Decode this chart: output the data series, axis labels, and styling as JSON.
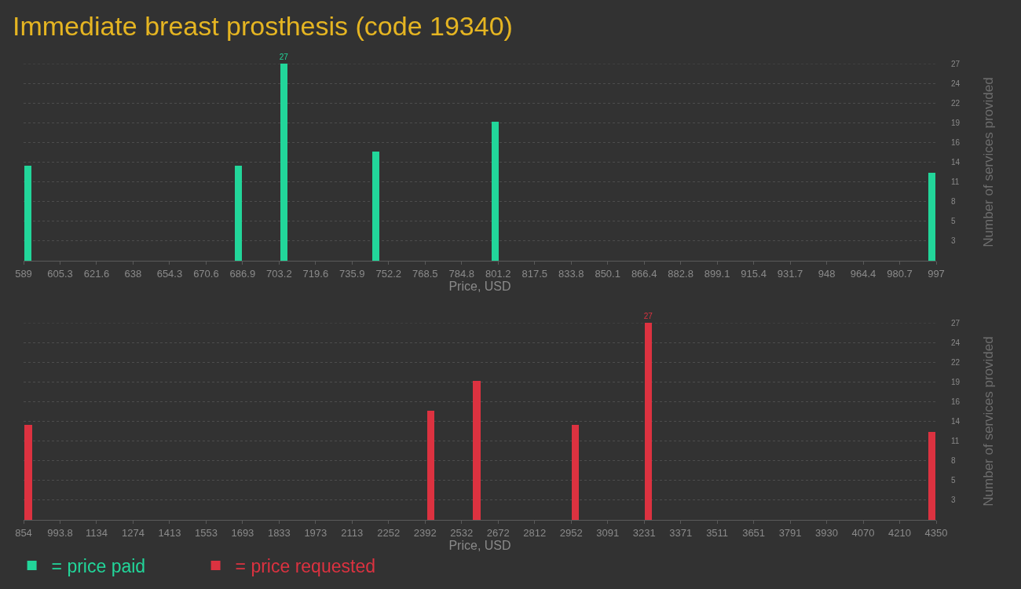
{
  "chart_data": [
    {
      "type": "bar",
      "title": "Immediate breast prosthesis (code 19340)",
      "xlabel": "Price, USD",
      "ylabel": "Number of services provided",
      "series": [
        {
          "name": "= price paid",
          "color": "#22d69a",
          "x": [
            591,
            685,
            705.5,
            746.5,
            800,
            995
          ],
          "values": [
            13,
            13,
            27,
            15,
            19,
            12
          ],
          "value_labels": [
            null,
            null,
            "27",
            null,
            null,
            null
          ]
        }
      ],
      "xlim": [
        589,
        997
      ],
      "xticks": [
        589,
        {
          "value": 605.32,
          "label": "605.3"
        },
        {
          "value": 621.64,
          "label": "621.6"
        },
        {
          "value": 637.96,
          "label": "638"
        },
        {
          "value": 654.28,
          "label": "654.3"
        },
        670.6,
        {
          "value": 686.92,
          "label": "686.9"
        },
        {
          "value": 703.24,
          "label": "703.2"
        },
        {
          "value": 719.56,
          "label": "719.6"
        },
        {
          "value": 735.88,
          "label": "735.9"
        },
        752.2,
        {
          "value": 768.52,
          "label": "768.5"
        },
        {
          "value": 784.84,
          "label": "784.8"
        },
        {
          "value": 801.16,
          "label": "801.2"
        },
        {
          "value": 817.48,
          "label": "817.5"
        },
        833.8,
        {
          "value": 850.12,
          "label": "850.1"
        },
        {
          "value": 866.44,
          "label": "866.4"
        },
        {
          "value": 882.76,
          "label": "882.8"
        },
        {
          "value": 899.08,
          "label": "899.1"
        },
        915.4,
        {
          "value": 931.72,
          "label": "931.7"
        },
        {
          "value": 948.04,
          "label": "948"
        },
        {
          "value": 964.36,
          "label": "964.4"
        },
        {
          "value": 980.68,
          "label": "980.7"
        },
        997
      ],
      "ylim": [
        0,
        27
      ],
      "yticks": [
        {
          "value": 2.7,
          "label": "3"
        },
        {
          "value": 5.4,
          "label": "5"
        },
        {
          "value": 8.1,
          "label": "8"
        },
        {
          "value": 10.8,
          "label": "11"
        },
        {
          "value": 13.5,
          "label": "14"
        },
        {
          "value": 16.2,
          "label": "16"
        },
        {
          "value": 18.9,
          "label": "19"
        },
        {
          "value": 21.6,
          "label": "22"
        },
        {
          "value": 24.3,
          "label": "24"
        },
        27
      ],
      "grid": "y",
      "legend": "bottom left"
    },
    {
      "type": "bar",
      "xlabel": "Price, USD",
      "ylabel": "Number of services provided",
      "series": [
        {
          "name": "= price requested",
          "color": "#dc3240",
          "x": [
            872,
            2414,
            2590,
            2967,
            3246,
            4333
          ],
          "values": [
            13,
            15,
            19,
            13,
            27,
            12
          ],
          "value_labels": [
            null,
            null,
            null,
            null,
            "27",
            null
          ]
        }
      ],
      "xlim": [
        854,
        4350
      ],
      "xticks": [
        854,
        {
          "value": 993.84,
          "label": "993.8"
        },
        {
          "value": 1133.68,
          "label": "1134"
        },
        {
          "value": 1273.52,
          "label": "1274"
        },
        {
          "value": 1413.36,
          "label": "1413"
        },
        {
          "value": 1553.2,
          "label": "1553"
        },
        {
          "value": 1693.04,
          "label": "1693"
        },
        {
          "value": 1832.88,
          "label": "1833"
        },
        {
          "value": 1972.72,
          "label": "1973"
        },
        {
          "value": 2112.56,
          "label": "2113"
        },
        {
          "value": 2252.4,
          "label": "2252"
        },
        {
          "value": 2392.24,
          "label": "2392"
        },
        {
          "value": 2532.08,
          "label": "2532"
        },
        {
          "value": 2671.92,
          "label": "2672"
        },
        {
          "value": 2811.76,
          "label": "2812"
        },
        {
          "value": 2951.6,
          "label": "2952"
        },
        {
          "value": 3091.44,
          "label": "3091"
        },
        {
          "value": 3231.28,
          "label": "3231"
        },
        {
          "value": 3371.12,
          "label": "3371"
        },
        {
          "value": 3510.96,
          "label": "3511"
        },
        {
          "value": 3650.8,
          "label": "3651"
        },
        {
          "value": 3790.64,
          "label": "3791"
        },
        {
          "value": 3930.48,
          "label": "3930"
        },
        {
          "value": 4070.32,
          "label": "4070"
        },
        {
          "value": 4210.16,
          "label": "4210"
        },
        4350
      ],
      "ylim": [
        0,
        27
      ],
      "yticks": [
        {
          "value": 2.7,
          "label": "3"
        },
        {
          "value": 5.4,
          "label": "5"
        },
        {
          "value": 8.1,
          "label": "8"
        },
        {
          "value": 10.8,
          "label": "11"
        },
        {
          "value": 13.5,
          "label": "14"
        },
        {
          "value": 16.2,
          "label": "16"
        },
        {
          "value": 18.9,
          "label": "19"
        },
        {
          "value": 21.6,
          "label": "22"
        },
        {
          "value": 24.3,
          "label": "24"
        },
        27
      ],
      "grid": "y",
      "legend": "bottom left"
    }
  ]
}
